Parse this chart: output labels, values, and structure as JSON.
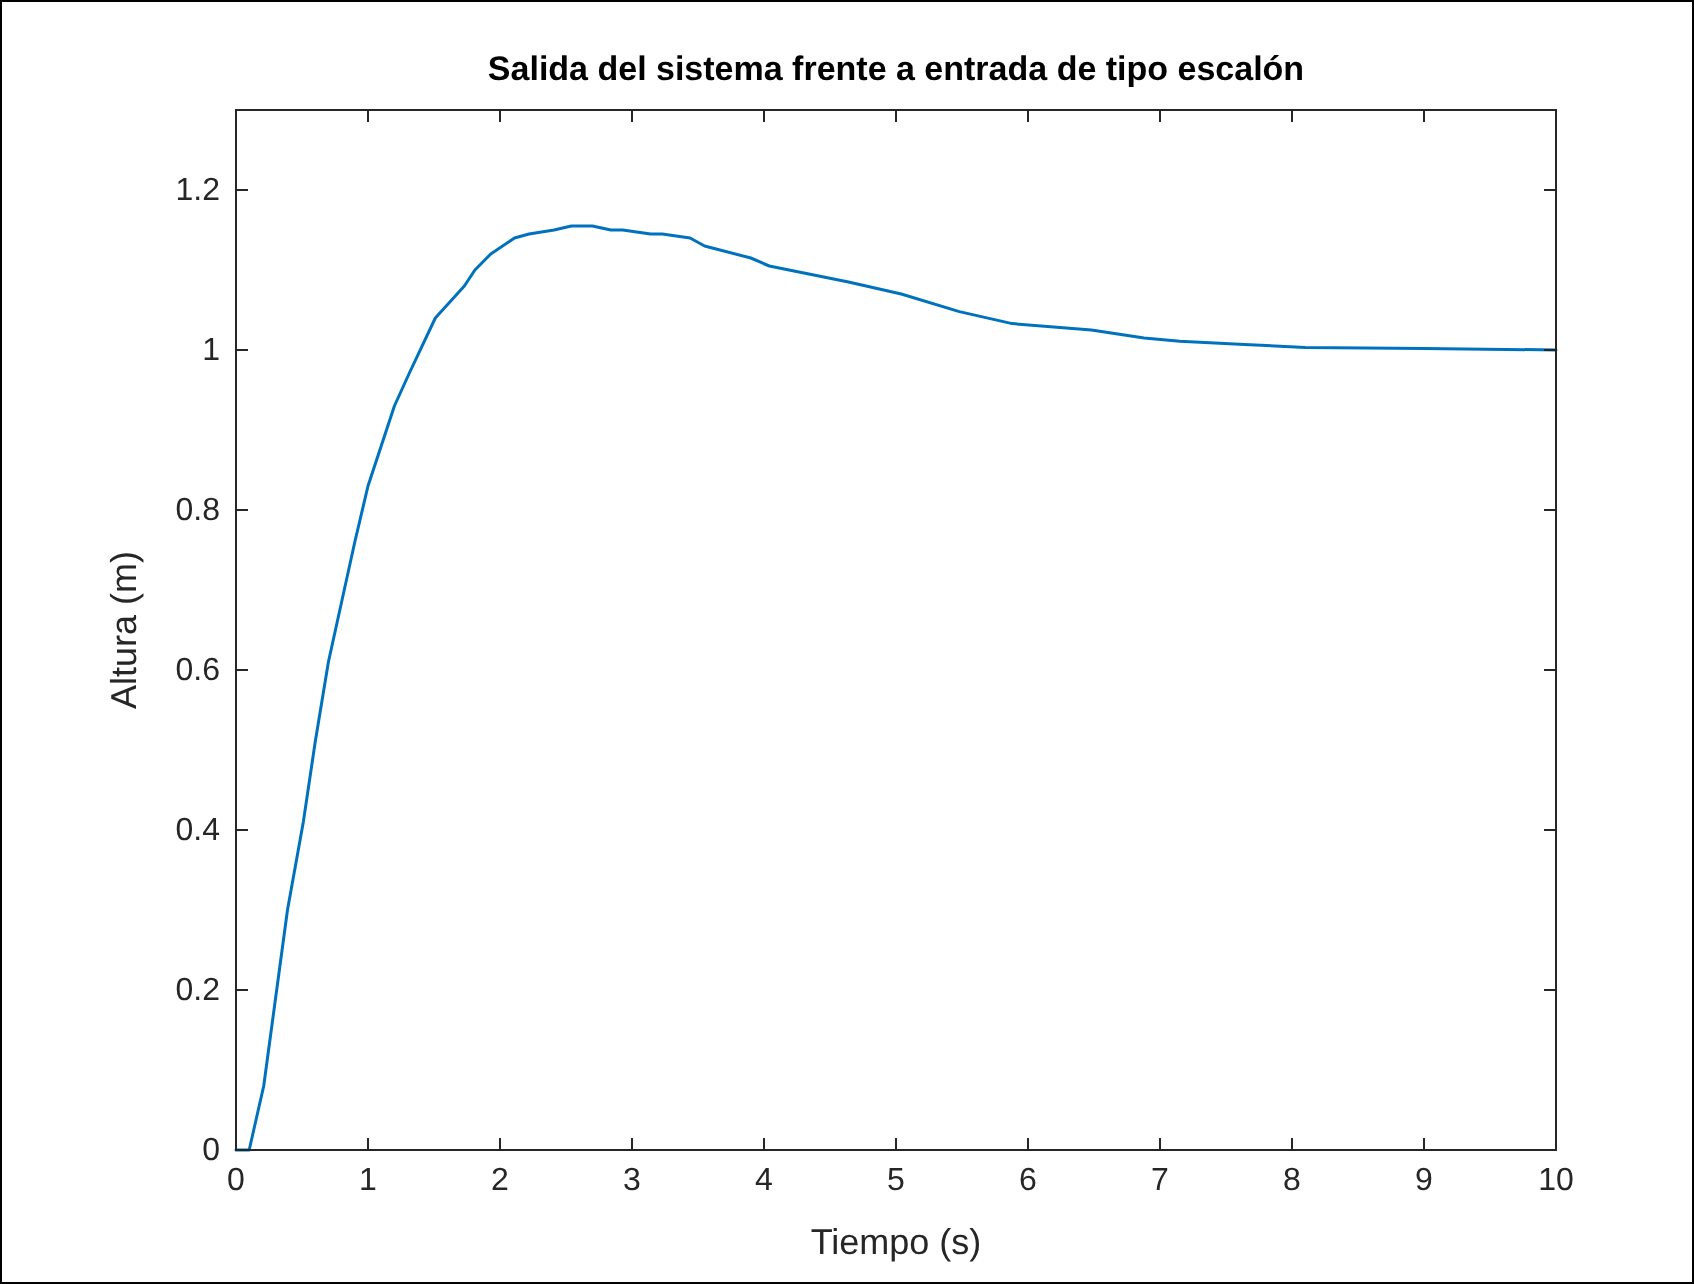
{
  "chart_data": {
    "type": "line",
    "title": "Salida del sistema frente a entrada de tipo escalón",
    "xlabel": "Tiempo (s)",
    "ylabel": "Altura (m)",
    "xlim": [
      0,
      10
    ],
    "ylim": [
      0,
      1.3
    ],
    "xticks": [
      0,
      1,
      2,
      3,
      4,
      5,
      6,
      7,
      8,
      9,
      10
    ],
    "yticks": [
      0,
      0.2,
      0.4,
      0.6,
      0.8,
      1,
      1.2
    ],
    "grid": false,
    "marker": "none",
    "line_style": "solid",
    "series": [
      {
        "color": "#0072bd",
        "x": [
          0,
          0.1,
          0.21,
          0.39,
          0.51,
          0.6,
          0.7,
          0.9,
          1.0,
          1.2,
          1.31,
          1.51,
          1.62,
          1.73,
          1.81,
          1.93,
          2.11,
          2.22,
          2.41,
          2.54,
          2.7,
          2.84,
          2.93,
          3.14,
          3.23,
          3.44,
          3.55,
          3.9,
          4.04,
          4.34,
          4.64,
          5.04,
          5.48,
          5.88,
          6.48,
          6.88,
          7.15,
          7.64,
          8.1,
          9,
          10
        ],
        "values": [
          0,
          0,
          0.08,
          0.3,
          0.41,
          0.51,
          0.61,
          0.76,
          0.83,
          0.93,
          0.97,
          1.04,
          1.06,
          1.08,
          1.1,
          1.12,
          1.14,
          1.145,
          1.15,
          1.155,
          1.155,
          1.15,
          1.15,
          1.145,
          1.145,
          1.14,
          1.13,
          1.115,
          1.105,
          1.095,
          1.085,
          1.07,
          1.048,
          1.033,
          1.025,
          1.015,
          1.011,
          1.007,
          1.003,
          1.002,
          1.0
        ]
      }
    ]
  }
}
